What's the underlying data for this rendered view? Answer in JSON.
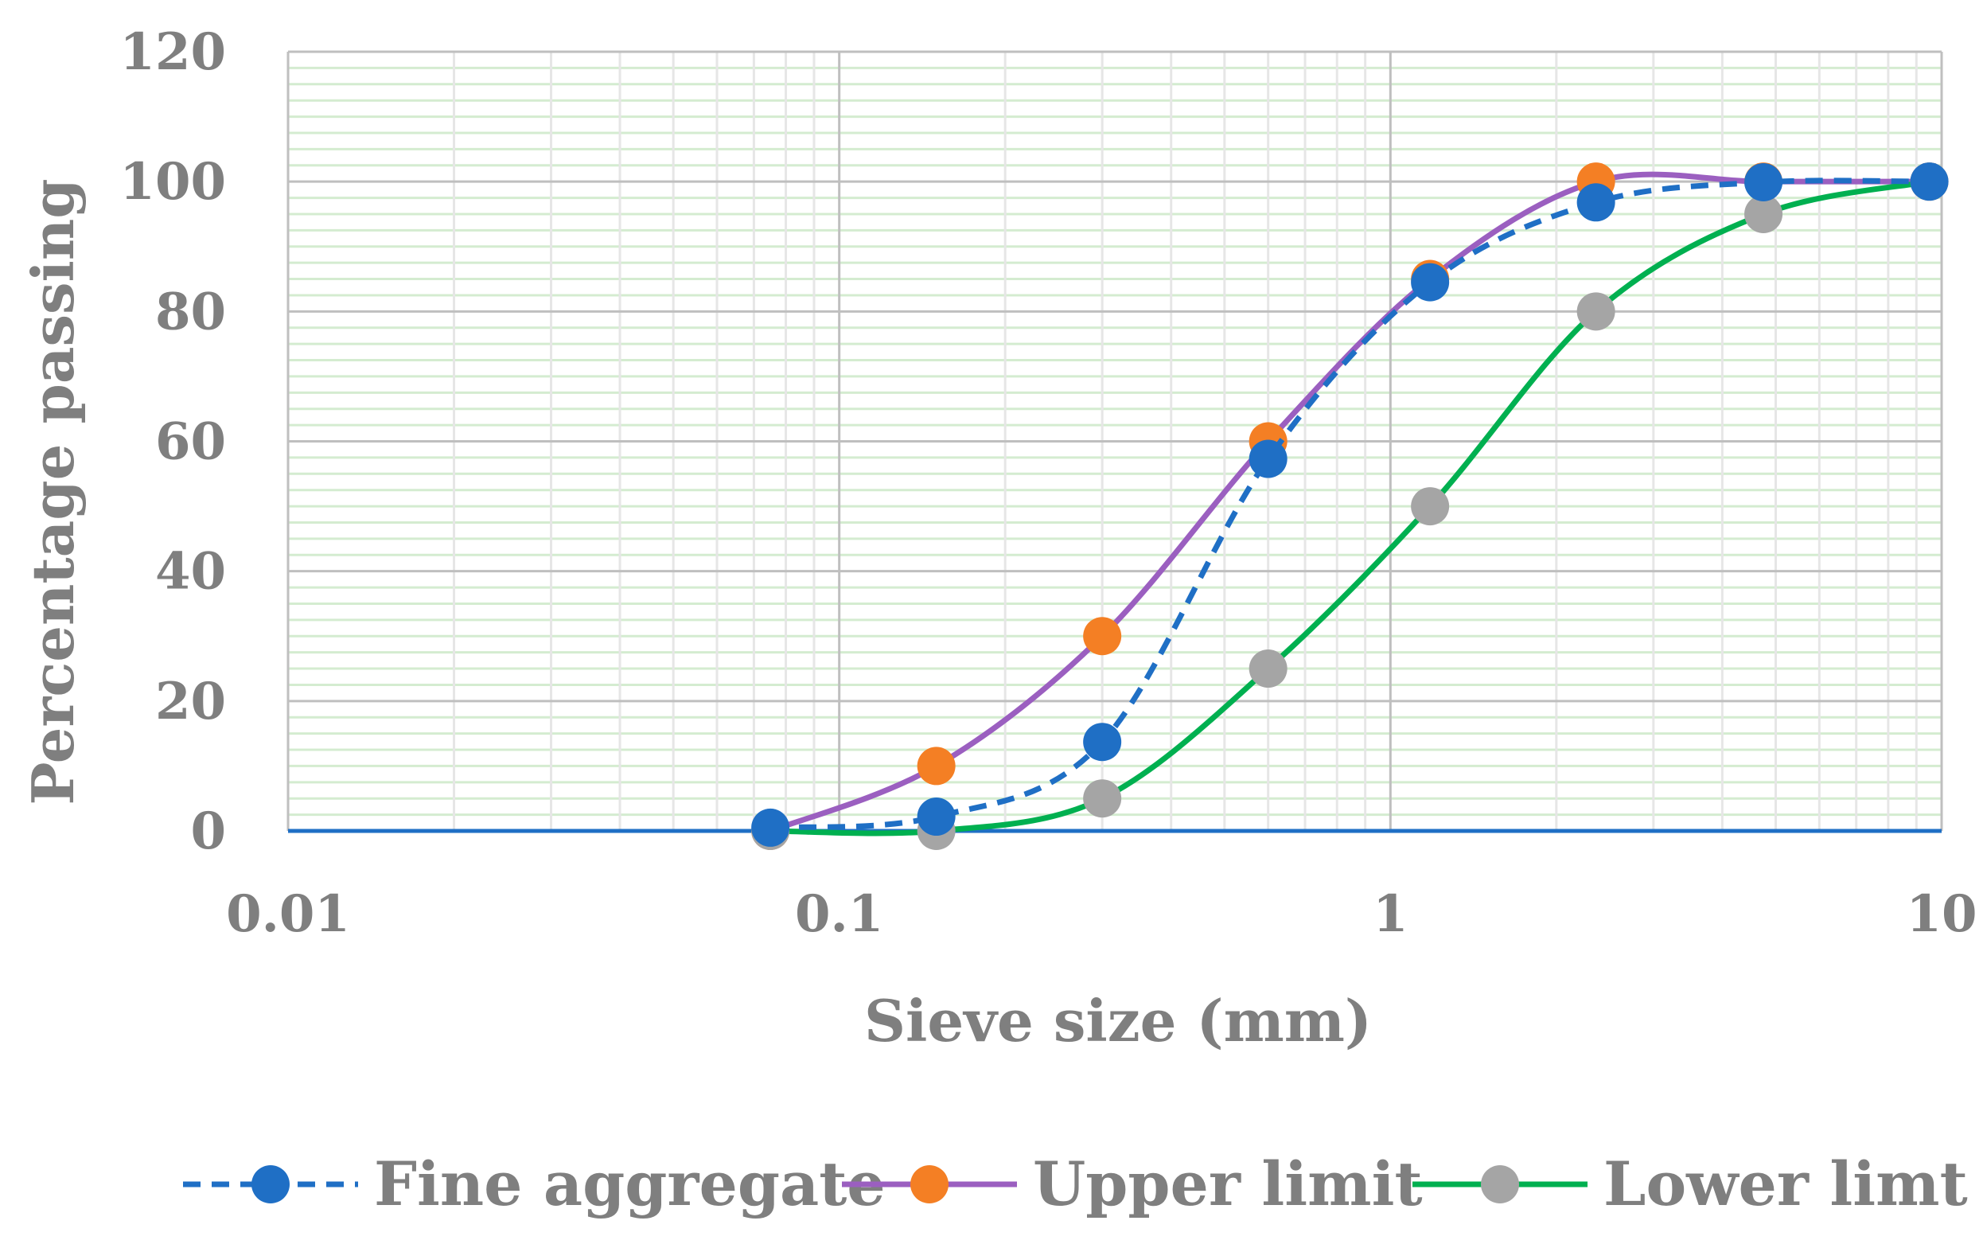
{
  "chart_data": {
    "type": "line",
    "xlabel": "Sieve size (mm)",
    "ylabel": "Percentage passing",
    "xscale": "log",
    "xlim": [
      0.01,
      10
    ],
    "ylim": [
      0,
      120
    ],
    "x_ticks": [
      "0.01",
      "0.1",
      "1",
      "10"
    ],
    "y_ticks": [
      "0",
      "20",
      "40",
      "60",
      "80",
      "100",
      "120"
    ],
    "grid": true,
    "legend_position": "bottom",
    "series": [
      {
        "name": "Fine aggregate",
        "color": "#1f6fc5",
        "line_style": "dashed",
        "marker": "circle",
        "x": [
          0.075,
          0.15,
          0.3,
          0.6,
          1.18,
          2.36,
          4.75,
          9.5
        ],
        "y": [
          0.5,
          2.2,
          13.7,
          57.3,
          84.5,
          96.8,
          99.9,
          100
        ]
      },
      {
        "name": "Upper limit",
        "color": "#9b5fc0",
        "marker_color": "#f47f24",
        "line_style": "solid",
        "marker": "circle",
        "x": [
          0.075,
          0.15,
          0.3,
          0.6,
          1.18,
          2.36,
          4.75,
          9.5
        ],
        "y": [
          0,
          10,
          30,
          60,
          85,
          100,
          100,
          100
        ]
      },
      {
        "name": "Lower limt",
        "color": "#00b050",
        "marker_color": "#a5a5a5",
        "line_style": "solid",
        "marker": "circle",
        "x": [
          0.075,
          0.15,
          0.3,
          0.6,
          1.18,
          2.36,
          4.75,
          9.5
        ],
        "y": [
          0,
          0,
          5,
          25,
          50,
          80,
          95,
          100
        ]
      }
    ]
  }
}
